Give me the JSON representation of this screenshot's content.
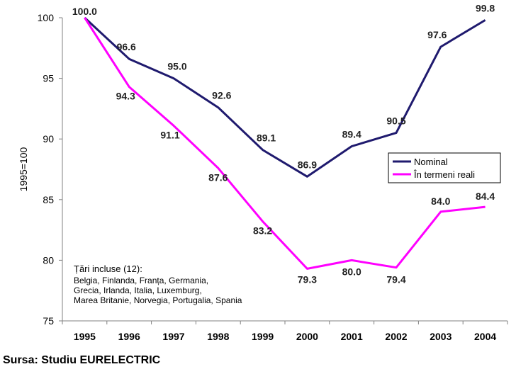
{
  "chart_data": {
    "type": "line",
    "x": [
      "1995",
      "1996",
      "1997",
      "1998",
      "1999",
      "2000",
      "2001",
      "2002",
      "2003",
      "2004"
    ],
    "series": [
      {
        "name": "Nominal",
        "color": "#1f1a6e",
        "values": [
          100.0,
          96.6,
          95.0,
          92.6,
          89.1,
          86.9,
          89.4,
          90.5,
          97.6,
          99.8
        ],
        "labels": [
          "100.0",
          "96.6",
          "95.0",
          "92.6",
          "89.1",
          "86.9",
          "89.4",
          "90.5",
          "97.6",
          "99.8"
        ]
      },
      {
        "name": "În termeni reali",
        "color": "#ff00ff",
        "values": [
          100.0,
          94.3,
          91.1,
          87.6,
          83.2,
          79.3,
          80.0,
          79.4,
          84.0,
          84.4
        ],
        "labels": [
          "",
          "94.3",
          "91.1",
          "87.6",
          "83.2",
          "79.3",
          "80.0",
          "79.4",
          "84.0",
          "84.4"
        ]
      }
    ],
    "ylabel": "1995=100",
    "ylim": [
      75,
      100
    ],
    "yticks": [
      "75",
      "80",
      "85",
      "90",
      "95",
      "100"
    ],
    "grid": false,
    "legend_position": "right",
    "note": {
      "title": "Țări incluse (12):",
      "lines": [
        "Belgia, Finlanda, Franța, Germania,",
        "Grecia, Irlanda, Italia, Luxemburg,",
        "Marea Britanie, Norvegia, Portugalia, Spania"
      ]
    }
  },
  "source": "Sursa: Studiu EURELECTRIC"
}
